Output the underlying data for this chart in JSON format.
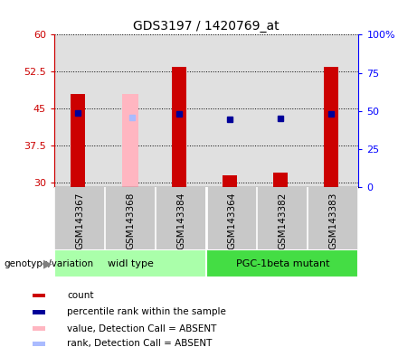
{
  "title": "GDS3197 / 1420769_at",
  "samples": [
    "GSM143367",
    "GSM143368",
    "GSM143384",
    "GSM143364",
    "GSM143382",
    "GSM143383"
  ],
  "group1_label": "widl type",
  "group2_label": "PGC-1beta mutant",
  "group1_color": "#aaffaa",
  "group2_color": "#44dd44",
  "count_values": [
    48.0,
    null,
    53.5,
    31.5,
    32.0,
    53.5
  ],
  "count_absent_values": [
    null,
    48.0,
    null,
    null,
    null,
    null
  ],
  "percentile_values": [
    49.0,
    null,
    48.0,
    44.8,
    44.9,
    48.0
  ],
  "percentile_absent_values": [
    null,
    46.0,
    null,
    null,
    null,
    null
  ],
  "ylim_left": [
    29.0,
    60.0
  ],
  "ylim_right": [
    0.0,
    100.0
  ],
  "yticks_left": [
    30,
    37.5,
    45,
    52.5,
    60
  ],
  "yticks_right": [
    0,
    25,
    50,
    75,
    100
  ],
  "count_color": "#CC0000",
  "count_absent_color": "#FFB6C1",
  "percentile_color": "#000099",
  "percentile_absent_color": "#AABBFF",
  "bar_width": 0.28,
  "bg_color": "#E0E0E0",
  "label_bg_color": "#C8C8C8",
  "legend_items": [
    {
      "label": "count",
      "color": "#CC0000"
    },
    {
      "label": "percentile rank within the sample",
      "color": "#000099"
    },
    {
      "label": "value, Detection Call = ABSENT",
      "color": "#FFB6C1"
    },
    {
      "label": "rank, Detection Call = ABSENT",
      "color": "#AABBFF"
    }
  ]
}
